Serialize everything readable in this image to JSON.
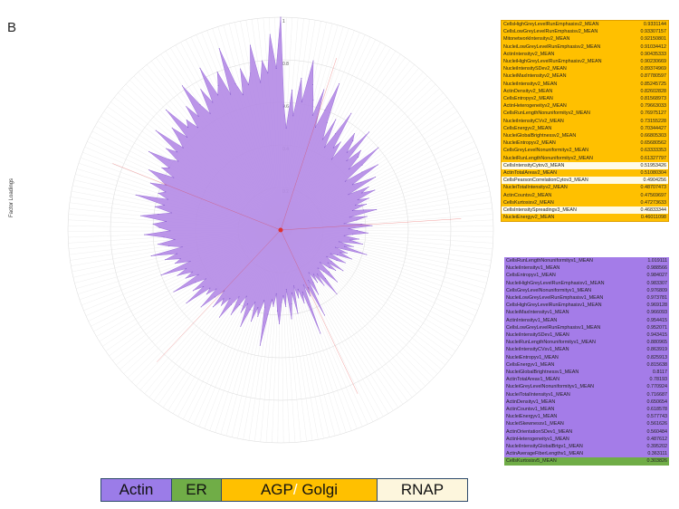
{
  "panel_letter": "B",
  "y_axis_label": "Factor Loadings",
  "legend": [
    {
      "label": "Actin",
      "color": "#9b7ce8"
    },
    {
      "label": "ER",
      "color": "#70ad47"
    },
    {
      "label": "AGP",
      "color": "#ffc000"
    },
    {
      "label": "Golgi",
      "color": "#ffc000"
    },
    {
      "label": "RNAP",
      "color": "#fdf6dd"
    }
  ],
  "colors": {
    "radar_fill": "#b48ae6",
    "agp": "#ffc000",
    "rnap": "#fffbe8",
    "actin": "#a47ce8",
    "er": "#70ad47",
    "center": "#e0312f"
  },
  "chart_data": [
    {
      "type": "table",
      "name": "top",
      "rows": [
        {
          "feature": "CellsHighGreyLevelRunEmphasisv2_MEAN",
          "value": "0.9331144",
          "group": "agp"
        },
        {
          "feature": "CellsLowGreyLevelRunEmphasisv2_MEAN",
          "value": "0.93307157",
          "group": "agp"
        },
        {
          "feature": "MitonetworkIntensityv2_MEAN",
          "value": "0.92150801",
          "group": "agp"
        },
        {
          "feature": "NucleiLowGreyLevelRunEmphasisv2_MEAN",
          "value": "0.91034412",
          "group": "agp"
        },
        {
          "feature": "ActinIntensityv2_MEAN",
          "value": "0.90435333",
          "group": "agp"
        },
        {
          "feature": "NucleiHighGreyLevelRunEmphasisv2_MEAN",
          "value": "0.90230669",
          "group": "agp"
        },
        {
          "feature": "NucleiIntensitySDev2_MEAN",
          "value": "0.89374969",
          "group": "agp"
        },
        {
          "feature": "NucleiMaxIntensityv2_MEAN",
          "value": "0.87780597",
          "group": "agp"
        },
        {
          "feature": "NucleiIntensityv2_MEAN",
          "value": "0.85245725",
          "group": "agp"
        },
        {
          "feature": "ActinDensityv2_MEAN",
          "value": "0.82602828",
          "group": "agp"
        },
        {
          "feature": "CellsEntropyv2_MEAN",
          "value": "0.81568973",
          "group": "agp"
        },
        {
          "feature": "ActinHeterogeneityv2_MEAN",
          "value": "0.79663033",
          "group": "agp"
        },
        {
          "feature": "CellsRunLengthNonuniformityv2_MEAN",
          "value": "0.76975127",
          "group": "agp"
        },
        {
          "feature": "NucleiIntensityCVv2_MEAN",
          "value": "0.73155228",
          "group": "agp"
        },
        {
          "feature": "CellsEnergyv2_MEAN",
          "value": "0.70344427",
          "group": "agp"
        },
        {
          "feature": "NucleiGlobalBrightnessv2_MEAN",
          "value": "0.66805303",
          "group": "agp"
        },
        {
          "feature": "NucleiEntropyv2_MEAN",
          "value": "0.65680562",
          "group": "agp"
        },
        {
          "feature": "CellsGreyLevelNonuniformityv2_MEAN",
          "value": "0.63333353",
          "group": "agp"
        },
        {
          "feature": "NucleiRunLengthNonuniformityv2_MEAN",
          "value": "0.61327797",
          "group": "agp"
        },
        {
          "feature": "CellsIntensityCytov3_MEAN",
          "value": "0.51953426",
          "group": "rnap"
        },
        {
          "feature": "ActinTotalAreav2_MEAN",
          "value": "0.51080304",
          "group": "agp"
        },
        {
          "feature": "CellsPearsonCorrelationCytov3_MEAN",
          "value": "0.4904256",
          "group": "rnap"
        },
        {
          "feature": "NucleiTotalIntensityv2_MEAN",
          "value": "0.48707473",
          "group": "agp"
        },
        {
          "feature": "ActinCountsv2_MEAN",
          "value": "0.47569697",
          "group": "agp"
        },
        {
          "feature": "CellsKurtosisv2_MEAN",
          "value": "0.47273633",
          "group": "agp"
        },
        {
          "feature": "CellsIntensitySpreadingv3_MEAN",
          "value": "0.46833344",
          "group": "rnap"
        },
        {
          "feature": "NucleiEnergyv2_MEAN",
          "value": "0.46011098",
          "group": "agp"
        }
      ]
    },
    {
      "type": "table",
      "name": "bottom",
      "rows": [
        {
          "feature": "CellsRunLengthNonuniformityv1_MEAN",
          "value": "1.019111",
          "group": "actin"
        },
        {
          "feature": "NucleiIntensityv1_MEAN",
          "value": "0.988566",
          "group": "actin"
        },
        {
          "feature": "CellsEntropyv1_MEAN",
          "value": "0.984027",
          "group": "actin"
        },
        {
          "feature": "NucleiHighGreyLevelRunEmphasisv1_MEAN",
          "value": "0.983307",
          "group": "actin"
        },
        {
          "feature": "CellsGreyLevelNonuniformityv1_MEAN",
          "value": "0.976809",
          "group": "actin"
        },
        {
          "feature": "NucleiLowGreyLevelRunEmphasisv1_MEAN",
          "value": "0.973781",
          "group": "actin"
        },
        {
          "feature": "CellsHighGreyLevelRunEmphasisv1_MEAN",
          "value": "0.969128",
          "group": "actin"
        },
        {
          "feature": "NucleiMaxIntensityv1_MEAN",
          "value": "0.966093",
          "group": "actin"
        },
        {
          "feature": "ActinIntensityv1_MEAN",
          "value": "0.954415",
          "group": "actin"
        },
        {
          "feature": "CellsLowGreyLevelRunEmphasisv1_MEAN",
          "value": "0.952071",
          "group": "actin"
        },
        {
          "feature": "NucleiIntensitySDev1_MEAN",
          "value": "0.943415",
          "group": "actin"
        },
        {
          "feature": "NucleiRunLengthNonuniformityv1_MEAN",
          "value": "0.880965",
          "group": "actin"
        },
        {
          "feature": "NucleiIntensityCVsv1_MEAN",
          "value": "0.863919",
          "group": "actin"
        },
        {
          "feature": "NucleiEntropyv1_MEAN",
          "value": "0.825913",
          "group": "actin"
        },
        {
          "feature": "CellsEnergyv1_MEAN",
          "value": "0.815638",
          "group": "actin"
        },
        {
          "feature": "NucleiGlobalBrightnessv1_MEAN",
          "value": "0.8117",
          "group": "actin"
        },
        {
          "feature": "ActinTotalAreav1_MEAN",
          "value": "0.78193",
          "group": "actin"
        },
        {
          "feature": "NucleiGreyLevelNonuniformityv1_MEAN",
          "value": "0.770924",
          "group": "actin"
        },
        {
          "feature": "NucleiTotalIntensityv1_MEAN",
          "value": "0.716687",
          "group": "actin"
        },
        {
          "feature": "ActinDensityv1_MEAN",
          "value": "0.650654",
          "group": "actin"
        },
        {
          "feature": "ActinCountsv1_MEAN",
          "value": "0.618578",
          "group": "actin"
        },
        {
          "feature": "NucleiEnergyv1_MEAN",
          "value": "0.577743",
          "group": "actin"
        },
        {
          "feature": "NucleiSkewnessv1_MEAN",
          "value": "0.561626",
          "group": "actin"
        },
        {
          "feature": "ActinOrientationSDev1_MEAN",
          "value": "0.560484",
          "group": "actin"
        },
        {
          "feature": "ActinHeterogeneityv1_MEAN",
          "value": "0.487612",
          "group": "actin"
        },
        {
          "feature": "NucleiIntensityGlobalBrtgv1_MEAN",
          "value": "0.395202",
          "group": "actin"
        },
        {
          "feature": "ActinAverageFiberLengthv1_MEAN",
          "value": "0.363111",
          "group": "actin"
        },
        {
          "feature": "CellsKurtosisv5_MEAN",
          "value": "0.303826",
          "group": "er"
        }
      ]
    },
    {
      "type": "radar",
      "name": "factor-loadings",
      "ylabel": "Factor Loadings",
      "ylim": [
        0,
        1.0
      ],
      "ticks": [
        "0.2",
        "0.4",
        "0.6",
        "0.8",
        "1"
      ],
      "values": [
        1.0,
        0.58,
        0.48,
        0.66,
        0.54,
        0.72,
        0.61,
        0.81,
        0.7,
        0.63,
        0.56,
        0.69,
        0.51,
        0.6,
        0.74,
        0.55,
        0.47,
        0.58,
        0.44,
        0.52,
        0.64,
        0.46,
        0.5,
        0.41,
        0.57,
        0.54,
        0.48,
        0.62,
        0.45,
        0.53,
        0.5,
        0.43,
        0.6,
        0.49,
        0.38,
        0.47,
        0.55,
        0.4,
        0.44,
        0.51,
        0.36,
        0.46,
        0.42,
        0.48,
        0.39,
        0.44,
        0.37,
        0.42,
        0.35,
        0.4,
        0.46,
        0.33,
        0.41,
        0.36,
        0.3,
        0.38,
        0.43,
        0.32,
        0.36,
        0.41,
        0.34,
        0.3,
        0.37,
        0.33,
        0.39,
        0.28,
        0.35,
        0.31,
        0.42,
        0.27,
        0.33,
        0.3,
        0.36,
        0.29,
        0.26,
        0.34,
        0.3,
        0.25,
        0.28,
        0.35,
        0.27,
        0.32,
        0.29,
        0.24,
        0.3,
        0.36,
        0.28,
        0.25,
        0.31,
        0.4,
        0.27,
        0.33,
        0.26,
        0.3,
        0.24,
        0.29,
        0.35,
        0.27,
        0.45,
        0.3,
        0.34,
        0.28,
        0.52,
        0.31,
        0.36,
        0.29,
        0.33,
        0.27,
        0.4,
        0.3,
        0.35,
        0.42,
        0.28,
        0.36,
        0.31,
        0.34,
        0.44,
        0.38,
        0.3,
        0.36,
        0.33,
        0.4,
        0.55,
        0.37,
        0.34,
        0.42,
        0.38,
        0.45,
        0.36,
        0.4,
        0.49,
        0.38,
        0.43,
        0.35,
        0.4,
        0.46,
        0.37,
        0.42,
        0.5,
        0.4,
        0.45,
        0.42,
        0.48,
        0.39,
        0.44,
        0.52,
        0.41,
        0.46,
        0.43,
        0.56,
        0.45,
        0.5,
        0.42,
        0.47,
        0.58,
        0.44,
        0.5,
        0.46,
        0.53,
        0.48,
        0.6,
        0.45,
        0.52,
        0.49,
        0.56,
        0.5,
        0.62,
        0.47,
        0.53,
        0.58,
        0.5,
        0.55,
        0.64,
        0.52,
        0.57,
        0.6,
        0.54,
        0.66,
        0.58,
        0.52,
        0.6,
        0.56,
        0.7,
        0.55,
        0.6,
        0.57,
        0.65,
        0.58,
        0.62,
        0.68,
        0.56,
        0.63,
        0.6,
        0.72,
        0.62,
        0.58,
        0.66,
        0.61,
        0.75,
        0.6,
        0.64,
        0.7,
        0.62,
        0.78,
        0.65,
        0.68,
        0.62,
        0.73,
        0.66,
        0.82,
        0.7,
        0.64,
        0.76,
        0.68,
        0.85,
        0.7,
        0.74,
        0.8,
        0.68,
        0.9,
        0.72,
        0.66,
        0.78,
        0.7,
        0.75,
        0.88,
        0.7,
        0.8,
        0.74,
        0.92,
        0.76
      ]
    }
  ]
}
